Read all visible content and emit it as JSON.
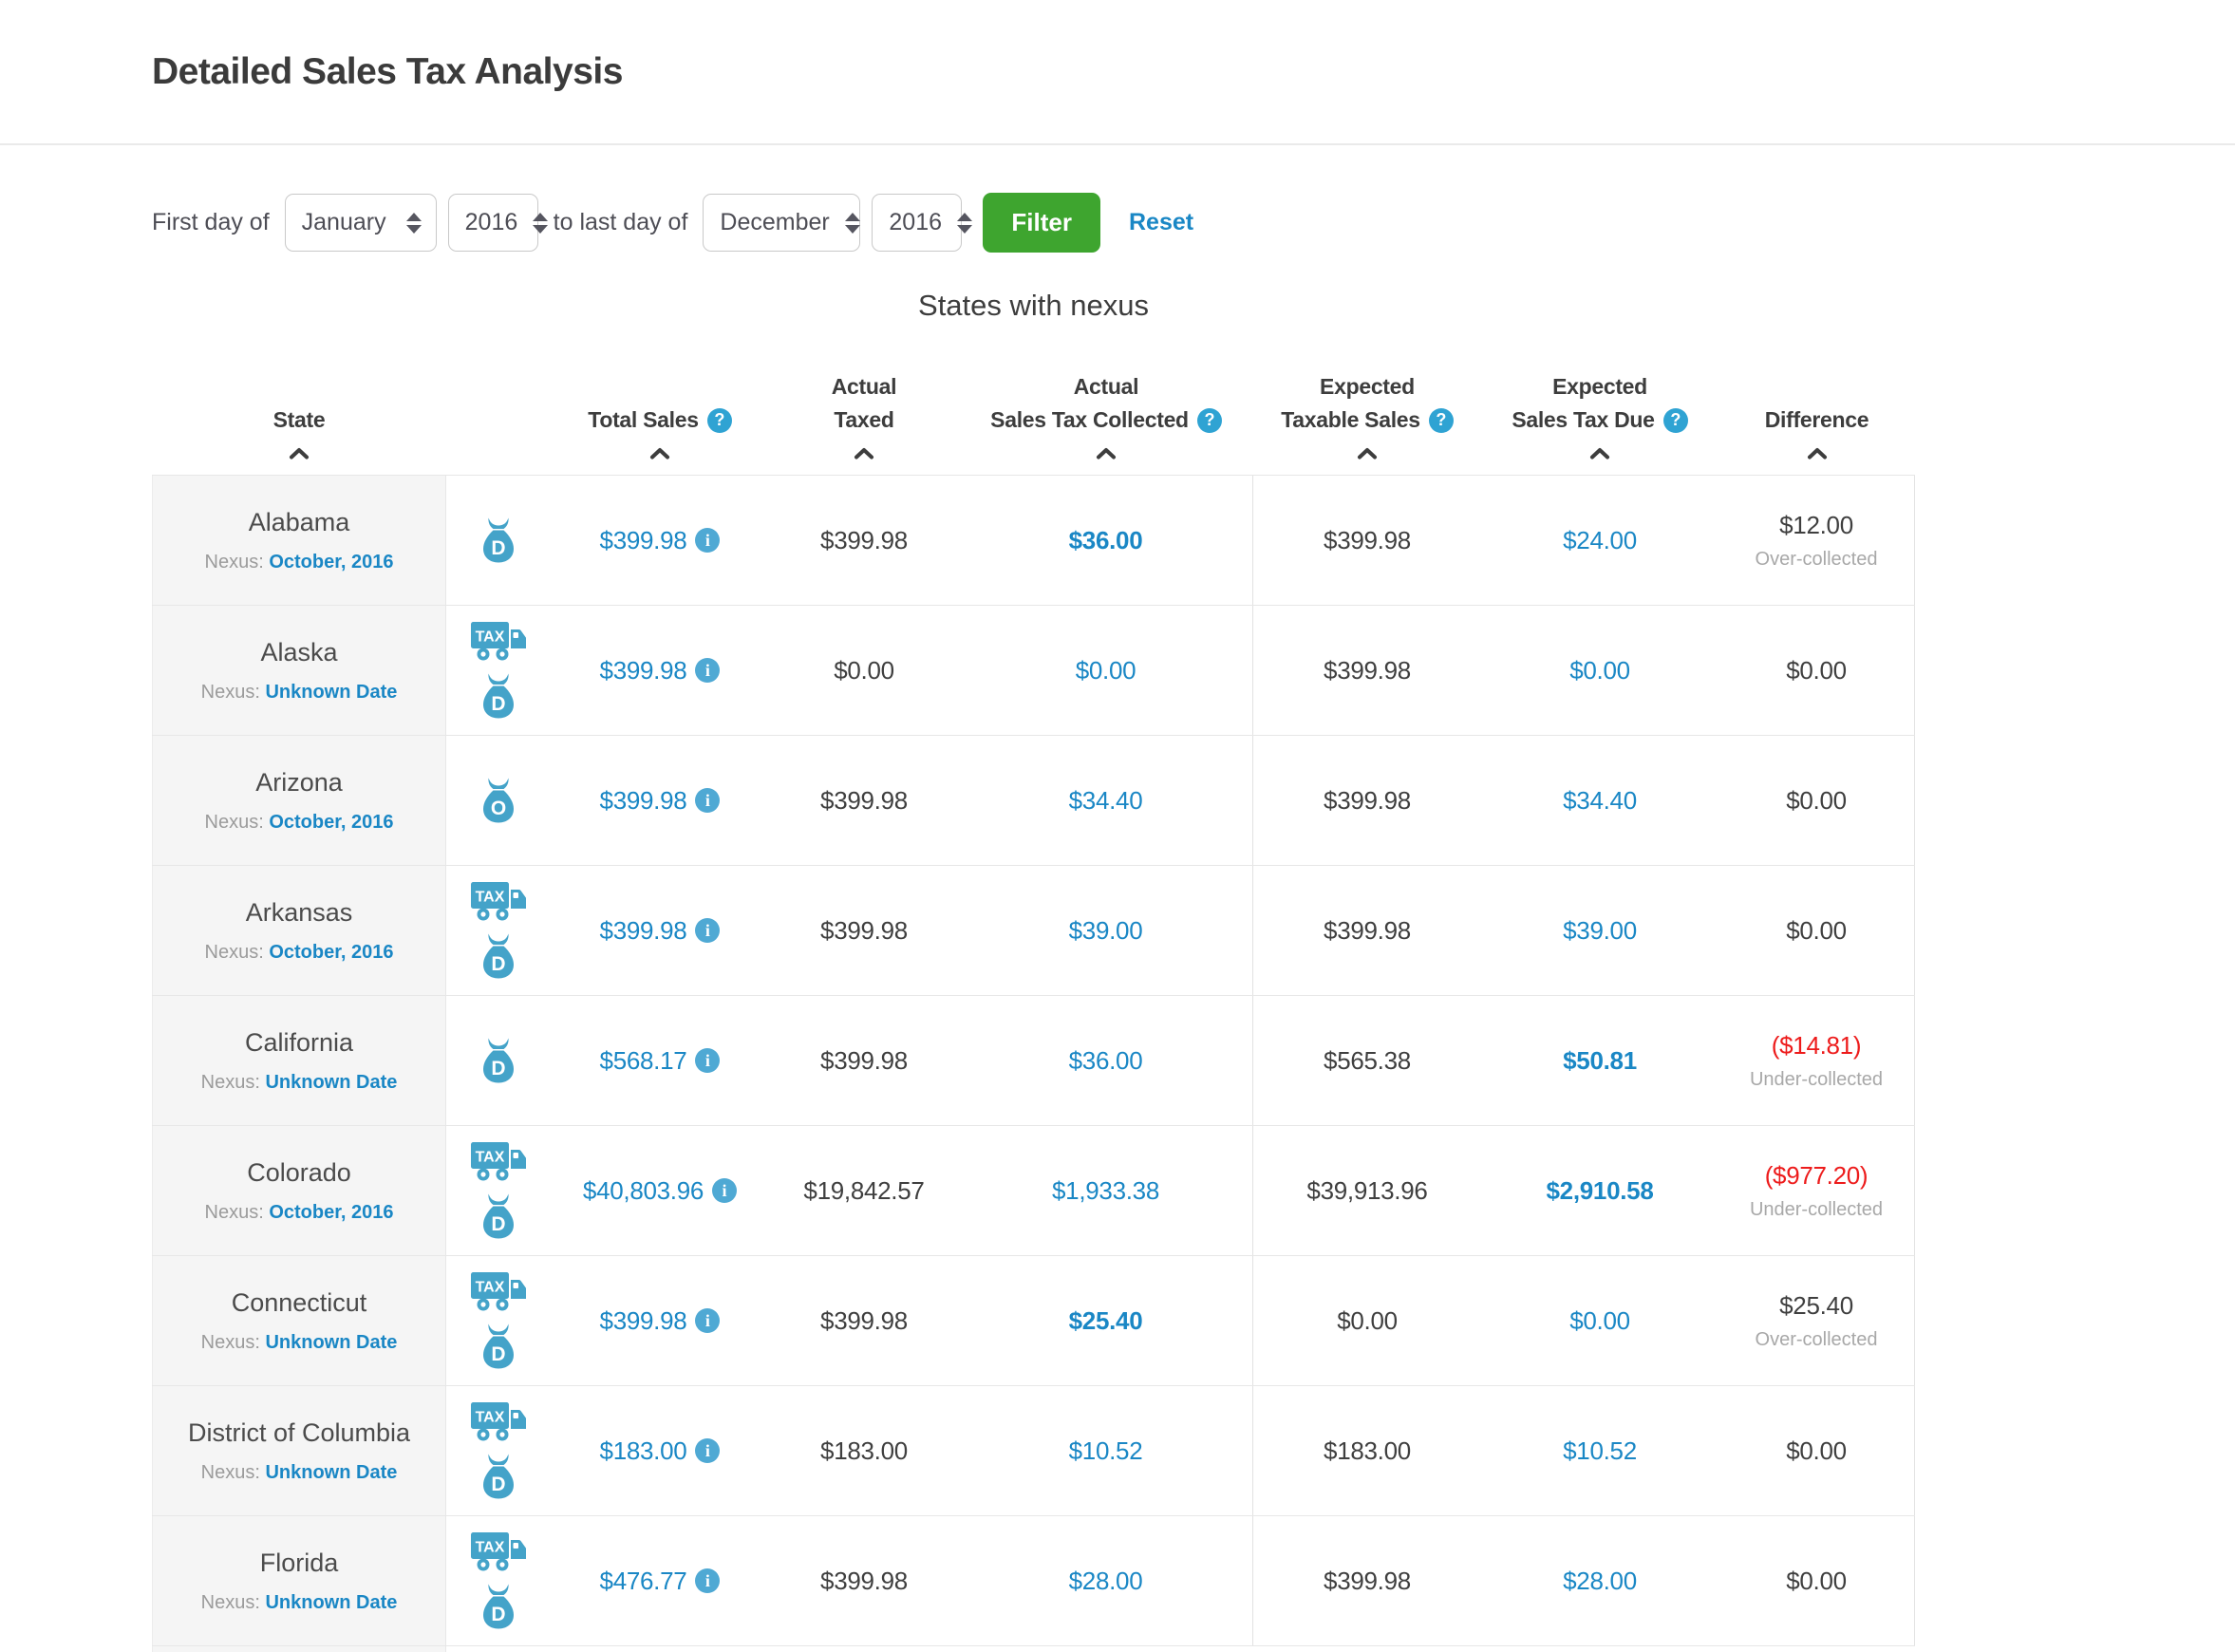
{
  "page_title": "Detailed Sales Tax Analysis",
  "filter": {
    "first_label": "First day of",
    "to_label": "to last day of",
    "start_month": "January",
    "start_year": "2016",
    "end_month": "December",
    "end_year": "2016",
    "filter_button": "Filter",
    "reset_link": "Reset"
  },
  "colors": {
    "blue": "#1a87c5",
    "icon": "#44a3c9",
    "info": "#4fa9d4",
    "help": "#2fa3d3",
    "green": "#3ea52f",
    "red": "#ed1b1b"
  },
  "icons": {
    "help_glyph": "?",
    "info_glyph": "i",
    "truck_label": "TAX",
    "bag_letters": {
      "bag-d": "D",
      "bag-o": "O"
    }
  },
  "table": {
    "title": "States with nexus",
    "nexus_label": "Nexus:",
    "columns": [
      {
        "key": "state",
        "lines": [
          "State"
        ],
        "help": false
      },
      {
        "key": "total-sales",
        "lines": [
          "Total Sales"
        ],
        "help": true
      },
      {
        "key": "actual-taxed",
        "lines": [
          "Actual",
          "Taxed"
        ],
        "help": false
      },
      {
        "key": "actual-sales-tax-collected",
        "lines": [
          "Actual",
          "Sales Tax Collected"
        ],
        "help": true
      },
      {
        "key": "expected-taxable-sales",
        "lines": [
          "Expected",
          "Taxable Sales"
        ],
        "help": true
      },
      {
        "key": "expected-sales-tax-due",
        "lines": [
          "Expected",
          "Sales Tax Due"
        ],
        "help": true
      },
      {
        "key": "difference",
        "lines": [
          "Difference"
        ],
        "help": false
      }
    ],
    "rows": [
      {
        "state": "Alabama",
        "nexus": "October, 2016",
        "icons": [
          "bag-d"
        ],
        "total": "$399.98",
        "taxed": "$399.98",
        "collected": "$36.00",
        "collected_bold": true,
        "taxable": "$399.98",
        "due": "$24.00",
        "due_bold": false,
        "diff": "$12.00",
        "diff_note": "Over-collected",
        "diff_negative": false
      },
      {
        "state": "Alaska",
        "nexus": "Unknown Date",
        "icons": [
          "truck-tax",
          "bag-d"
        ],
        "total": "$399.98",
        "taxed": "$0.00",
        "collected": "$0.00",
        "collected_bold": false,
        "taxable": "$399.98",
        "due": "$0.00",
        "due_bold": false,
        "diff": "$0.00",
        "diff_note": "",
        "diff_negative": false
      },
      {
        "state": "Arizona",
        "nexus": "October, 2016",
        "icons": [
          "bag-o"
        ],
        "total": "$399.98",
        "taxed": "$399.98",
        "collected": "$34.40",
        "collected_bold": false,
        "taxable": "$399.98",
        "due": "$34.40",
        "due_bold": false,
        "diff": "$0.00",
        "diff_note": "",
        "diff_negative": false
      },
      {
        "state": "Arkansas",
        "nexus": "October, 2016",
        "icons": [
          "truck-tax",
          "bag-d"
        ],
        "total": "$399.98",
        "taxed": "$399.98",
        "collected": "$39.00",
        "collected_bold": false,
        "taxable": "$399.98",
        "due": "$39.00",
        "due_bold": false,
        "diff": "$0.00",
        "diff_note": "",
        "diff_negative": false
      },
      {
        "state": "California",
        "nexus": "Unknown Date",
        "icons": [
          "bag-d"
        ],
        "total": "$568.17",
        "taxed": "$399.98",
        "collected": "$36.00",
        "collected_bold": false,
        "taxable": "$565.38",
        "due": "$50.81",
        "due_bold": true,
        "diff": "($14.81)",
        "diff_note": "Under-collected",
        "diff_negative": true
      },
      {
        "state": "Colorado",
        "nexus": "October, 2016",
        "icons": [
          "truck-tax",
          "bag-d"
        ],
        "total": "$40,803.96",
        "taxed": "$19,842.57",
        "collected": "$1,933.38",
        "collected_bold": false,
        "taxable": "$39,913.96",
        "due": "$2,910.58",
        "due_bold": true,
        "diff": "($977.20)",
        "diff_note": "Under-collected",
        "diff_negative": true
      },
      {
        "state": "Connecticut",
        "nexus": "Unknown Date",
        "icons": [
          "truck-tax",
          "bag-d"
        ],
        "total": "$399.98",
        "taxed": "$399.98",
        "collected": "$25.40",
        "collected_bold": true,
        "taxable": "$0.00",
        "due": "$0.00",
        "due_bold": false,
        "diff": "$25.40",
        "diff_note": "Over-collected",
        "diff_negative": false
      },
      {
        "state": "District of Columbia",
        "nexus": "Unknown Date",
        "icons": [
          "truck-tax",
          "bag-d"
        ],
        "total": "$183.00",
        "taxed": "$183.00",
        "collected": "$10.52",
        "collected_bold": false,
        "taxable": "$183.00",
        "due": "$10.52",
        "due_bold": false,
        "diff": "$0.00",
        "diff_note": "",
        "diff_negative": false
      },
      {
        "state": "Florida",
        "nexus": "Unknown Date",
        "icons": [
          "truck-tax",
          "bag-d"
        ],
        "total": "$476.77",
        "taxed": "$399.98",
        "collected": "$28.00",
        "collected_bold": false,
        "taxable": "$399.98",
        "due": "$28.00",
        "due_bold": false,
        "diff": "$0.00",
        "diff_note": "",
        "diff_negative": false
      }
    ]
  }
}
